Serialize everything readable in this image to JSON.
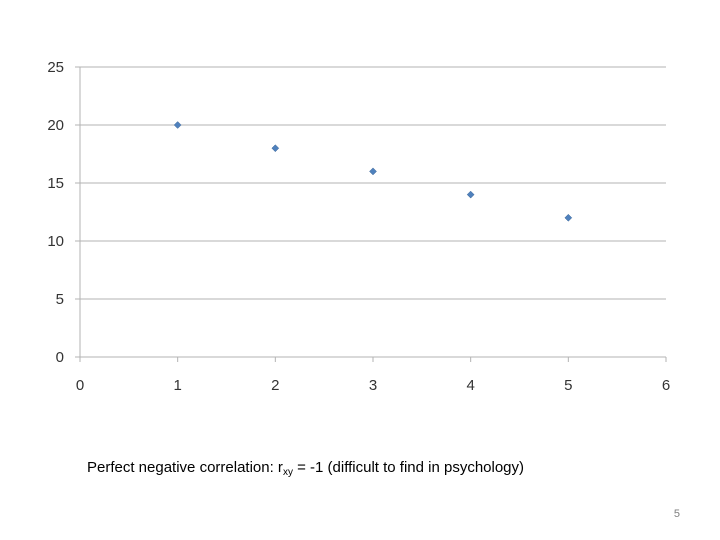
{
  "chart_data": {
    "type": "scatter",
    "x": [
      1,
      2,
      3,
      4,
      5
    ],
    "y": [
      20,
      18,
      16,
      14,
      12
    ],
    "xlim": [
      0,
      6
    ],
    "ylim": [
      0,
      25
    ],
    "x_ticks": [
      "0",
      "1",
      "2",
      "3",
      "4",
      "5",
      "6"
    ],
    "y_ticks": [
      "0",
      "5",
      "10",
      "15",
      "20",
      "25"
    ],
    "grid": "horizontal",
    "marker_color": "#4f81bd",
    "title": "",
    "xlabel": "",
    "ylabel": ""
  },
  "caption": {
    "prefix": "Perfect negative correlation: r",
    "subscript": "xy",
    "suffix": " = -1 (difficult to find in psychology)"
  },
  "slide": {
    "number": "5"
  }
}
